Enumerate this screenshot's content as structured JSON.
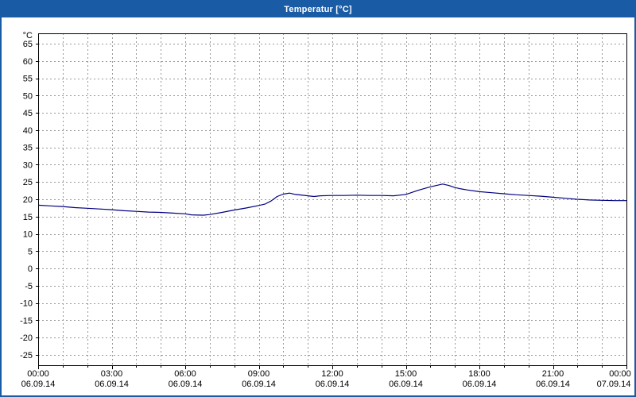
{
  "window": {
    "title": "Temperatur [°C]"
  },
  "colors": {
    "titlebar": "#1a5ba6",
    "titlebar_text": "#ffffff",
    "window_border": "#1a5ba6",
    "content_bg": "#ffffff",
    "plot_bg": "#ffffff",
    "grid": "#9a9a9a",
    "axis": "#000000",
    "label": "#000000",
    "line": "#000080"
  },
  "chart_data": {
    "type": "line",
    "title": "Temperatur [°C]",
    "ylabel": "°C",
    "xlabel": "",
    "grid": "dashed",
    "legend": "none",
    "xlim_hours": [
      0,
      24
    ],
    "ylim": [
      -28,
      68
    ],
    "yticks": [
      65,
      60,
      55,
      50,
      45,
      40,
      35,
      30,
      25,
      20,
      15,
      10,
      5,
      0,
      -5,
      -10,
      -15,
      -20,
      -25
    ],
    "ytick_step": 5,
    "x_grid_step_hours": 1,
    "xticks": [
      {
        "hour": 0,
        "time": "00:00",
        "date": "06.09.14"
      },
      {
        "hour": 3,
        "time": "03:00",
        "date": "06.09.14"
      },
      {
        "hour": 6,
        "time": "06:00",
        "date": "06.09.14"
      },
      {
        "hour": 9,
        "time": "09:00",
        "date": "06.09.14"
      },
      {
        "hour": 12,
        "time": "12:00",
        "date": "06.09.14"
      },
      {
        "hour": 15,
        "time": "15:00",
        "date": "06.09.14"
      },
      {
        "hour": 18,
        "time": "18:00",
        "date": "06.09.14"
      },
      {
        "hour": 21,
        "time": "21:00",
        "date": "06.09.14"
      },
      {
        "hour": 24,
        "time": "00:00",
        "date": "07.09.14"
      }
    ],
    "series": [
      {
        "name": "Temperatur",
        "unit": "°C",
        "color": "#000080",
        "points_hour_value": [
          [
            0,
            18.3
          ],
          [
            0.5,
            18.1
          ],
          [
            1,
            17.9
          ],
          [
            1.5,
            17.6
          ],
          [
            2,
            17.4
          ],
          [
            2.5,
            17.2
          ],
          [
            3,
            17.0
          ],
          [
            3.5,
            16.7
          ],
          [
            4,
            16.5
          ],
          [
            4.5,
            16.3
          ],
          [
            5,
            16.2
          ],
          [
            5.5,
            16.0
          ],
          [
            6,
            15.8
          ],
          [
            6.25,
            15.5
          ],
          [
            6.75,
            15.4
          ],
          [
            7,
            15.6
          ],
          [
            7.5,
            16.2
          ],
          [
            8,
            16.9
          ],
          [
            8.5,
            17.5
          ],
          [
            9,
            18.2
          ],
          [
            9.25,
            18.6
          ],
          [
            9.5,
            19.5
          ],
          [
            9.75,
            20.8
          ],
          [
            10,
            21.5
          ],
          [
            10.25,
            21.8
          ],
          [
            10.5,
            21.4
          ],
          [
            11,
            21.0
          ],
          [
            11.25,
            20.8
          ],
          [
            11.5,
            21.0
          ],
          [
            12,
            21.1
          ],
          [
            12.5,
            21.1
          ],
          [
            13,
            21.2
          ],
          [
            13.5,
            21.1
          ],
          [
            14,
            21.1
          ],
          [
            14.5,
            21.0
          ],
          [
            15,
            21.4
          ],
          [
            15.25,
            22.0
          ],
          [
            15.5,
            22.6
          ],
          [
            16,
            23.6
          ],
          [
            16.25,
            24.0
          ],
          [
            16.5,
            24.4
          ],
          [
            16.75,
            24.0
          ],
          [
            17,
            23.4
          ],
          [
            17.25,
            23.0
          ],
          [
            17.5,
            22.7
          ],
          [
            18,
            22.2
          ],
          [
            18.5,
            21.9
          ],
          [
            19,
            21.6
          ],
          [
            19.5,
            21.3
          ],
          [
            20,
            21.1
          ],
          [
            20.5,
            20.9
          ],
          [
            21,
            20.6
          ],
          [
            21.5,
            20.3
          ],
          [
            22,
            20.0
          ],
          [
            22.5,
            19.8
          ],
          [
            23,
            19.7
          ],
          [
            23.5,
            19.6
          ],
          [
            24,
            19.6
          ]
        ]
      }
    ]
  }
}
